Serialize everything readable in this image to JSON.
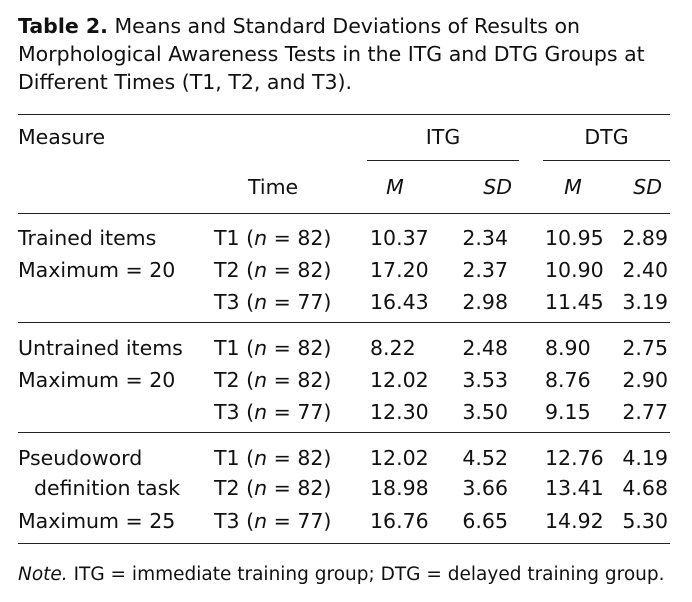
{
  "caption": {
    "label": "Table 2.",
    "text": "Means and Standard Deviations of Results on Morphological Awareness Tests in the ITG and DTG Groups at Different Times (T1, T2, and T3)."
  },
  "headers": {
    "measure": "Measure",
    "time": "Time",
    "group1": "ITG",
    "group2": "DTG",
    "m": "M",
    "sd": "SD"
  },
  "rows": [
    {
      "measure": "Trained items",
      "time": "T1",
      "n": "82",
      "itg_m": "10.37",
      "itg_sd": "2.34",
      "dtg_m": "10.95",
      "dtg_sd": "2.89"
    },
    {
      "measure": "Maximum = 20",
      "time": "T2",
      "n": "82",
      "itg_m": "17.20",
      "itg_sd": "2.37",
      "dtg_m": "10.90",
      "dtg_sd": "2.40"
    },
    {
      "measure": "",
      "time": "T3",
      "n": "77",
      "itg_m": "16.43",
      "itg_sd": "2.98",
      "dtg_m": "11.45",
      "dtg_sd": "3.19"
    },
    {
      "measure": "Untrained items",
      "time": "T1",
      "n": "82",
      "itg_m": "8.22",
      "itg_sd": "2.48",
      "dtg_m": "8.90",
      "dtg_sd": "2.75"
    },
    {
      "measure": "Maximum = 20",
      "time": "T2",
      "n": "82",
      "itg_m": "12.02",
      "itg_sd": "3.53",
      "dtg_m": "8.76",
      "dtg_sd": "2.90"
    },
    {
      "measure": "",
      "time": "T3",
      "n": "77",
      "itg_m": "12.30",
      "itg_sd": "3.50",
      "dtg_m": "9.15",
      "dtg_sd": "2.77"
    },
    {
      "measure": "Pseudoword",
      "time": "T1",
      "n": "82",
      "itg_m": "12.02",
      "itg_sd": "4.52",
      "dtg_m": "12.76",
      "dtg_sd": "4.19"
    },
    {
      "measure": "definition task",
      "time": "T2",
      "n": "82",
      "itg_m": "18.98",
      "itg_sd": "3.66",
      "dtg_m": "13.41",
      "dtg_sd": "4.68"
    },
    {
      "measure": "Maximum = 25",
      "time": "T3",
      "n": "77",
      "itg_m": "16.76",
      "itg_sd": "6.65",
      "dtg_m": "14.92",
      "dtg_sd": "5.30"
    }
  ],
  "note": {
    "label": "Note.",
    "text": "ITG = immediate training group; DTG = delayed training group."
  }
}
